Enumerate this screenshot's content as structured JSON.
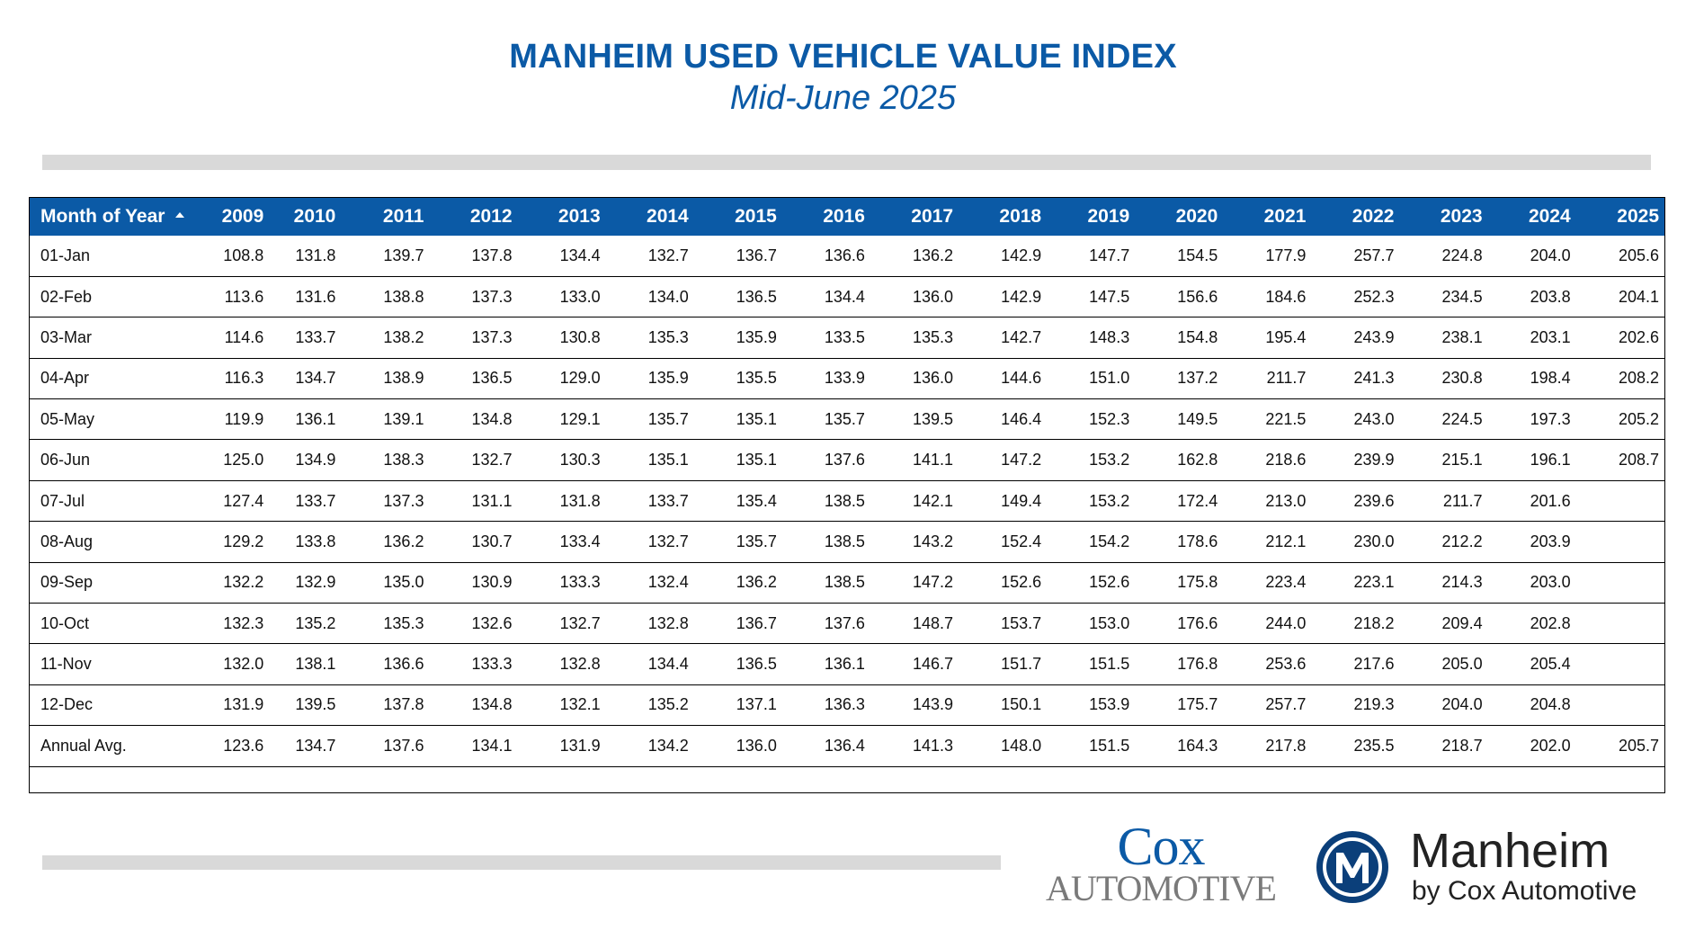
{
  "title": "MANHEIM USED VEHICLE VALUE INDEX",
  "subtitle": "Mid-June 2025",
  "table": {
    "first_header": "Month of Year",
    "sort_icon": "sort-ascending-icon",
    "years": [
      "2009",
      "2010",
      "2011",
      "2012",
      "2013",
      "2014",
      "2015",
      "2016",
      "2017",
      "2018",
      "2019",
      "2020",
      "2021",
      "2022",
      "2023",
      "2024",
      "2025"
    ],
    "rows": [
      {
        "label": "01-Jan",
        "values": [
          "108.8",
          "131.8",
          "139.7",
          "137.8",
          "134.4",
          "132.7",
          "136.7",
          "136.6",
          "136.2",
          "142.9",
          "147.7",
          "154.5",
          "177.9",
          "257.7",
          "224.8",
          "204.0",
          "205.6"
        ]
      },
      {
        "label": "02-Feb",
        "values": [
          "113.6",
          "131.6",
          "138.8",
          "137.3",
          "133.0",
          "134.0",
          "136.5",
          "134.4",
          "136.0",
          "142.9",
          "147.5",
          "156.6",
          "184.6",
          "252.3",
          "234.5",
          "203.8",
          "204.1"
        ]
      },
      {
        "label": "03-Mar",
        "values": [
          "114.6",
          "133.7",
          "138.2",
          "137.3",
          "130.8",
          "135.3",
          "135.9",
          "133.5",
          "135.3",
          "142.7",
          "148.3",
          "154.8",
          "195.4",
          "243.9",
          "238.1",
          "203.1",
          "202.6"
        ]
      },
      {
        "label": "04-Apr",
        "values": [
          "116.3",
          "134.7",
          "138.9",
          "136.5",
          "129.0",
          "135.9",
          "135.5",
          "133.9",
          "136.0",
          "144.6",
          "151.0",
          "137.2",
          "211.7",
          "241.3",
          "230.8",
          "198.4",
          "208.2"
        ]
      },
      {
        "label": "05-May",
        "values": [
          "119.9",
          "136.1",
          "139.1",
          "134.8",
          "129.1",
          "135.7",
          "135.1",
          "135.7",
          "139.5",
          "146.4",
          "152.3",
          "149.5",
          "221.5",
          "243.0",
          "224.5",
          "197.3",
          "205.2"
        ]
      },
      {
        "label": "06-Jun",
        "values": [
          "125.0",
          "134.9",
          "138.3",
          "132.7",
          "130.3",
          "135.1",
          "135.1",
          "137.6",
          "141.1",
          "147.2",
          "153.2",
          "162.8",
          "218.6",
          "239.9",
          "215.1",
          "196.1",
          "208.7"
        ]
      },
      {
        "label": "07-Jul",
        "values": [
          "127.4",
          "133.7",
          "137.3",
          "131.1",
          "131.8",
          "133.7",
          "135.4",
          "138.5",
          "142.1",
          "149.4",
          "153.2",
          "172.4",
          "213.0",
          "239.6",
          "211.7",
          "201.6",
          ""
        ]
      },
      {
        "label": "08-Aug",
        "values": [
          "129.2",
          "133.8",
          "136.2",
          "130.7",
          "133.4",
          "132.7",
          "135.7",
          "138.5",
          "143.2",
          "152.4",
          "154.2",
          "178.6",
          "212.1",
          "230.0",
          "212.2",
          "203.9",
          ""
        ]
      },
      {
        "label": "09-Sep",
        "values": [
          "132.2",
          "132.9",
          "135.0",
          "130.9",
          "133.3",
          "132.4",
          "136.2",
          "138.5",
          "147.2",
          "152.6",
          "152.6",
          "175.8",
          "223.4",
          "223.1",
          "214.3",
          "203.0",
          ""
        ]
      },
      {
        "label": "10-Oct",
        "values": [
          "132.3",
          "135.2",
          "135.3",
          "132.6",
          "132.7",
          "132.8",
          "136.7",
          "137.6",
          "148.7",
          "153.7",
          "153.0",
          "176.6",
          "244.0",
          "218.2",
          "209.4",
          "202.8",
          ""
        ]
      },
      {
        "label": "11-Nov",
        "values": [
          "132.0",
          "138.1",
          "136.6",
          "133.3",
          "132.8",
          "134.4",
          "136.5",
          "136.1",
          "146.7",
          "151.7",
          "151.5",
          "176.8",
          "253.6",
          "217.6",
          "205.0",
          "205.4",
          ""
        ]
      },
      {
        "label": "12-Dec",
        "values": [
          "131.9",
          "139.5",
          "137.8",
          "134.8",
          "132.1",
          "135.2",
          "137.1",
          "136.3",
          "143.9",
          "150.1",
          "153.9",
          "175.7",
          "257.7",
          "219.3",
          "204.0",
          "204.8",
          ""
        ]
      },
      {
        "label": "Annual Avg.",
        "values": [
          "123.6",
          "134.7",
          "137.6",
          "134.1",
          "131.9",
          "134.2",
          "136.0",
          "136.4",
          "141.3",
          "148.0",
          "151.5",
          "164.3",
          "217.8",
          "235.5",
          "218.7",
          "202.0",
          "205.7"
        ]
      }
    ]
  },
  "logos": {
    "cox_line1": "Cox",
    "cox_line2": "Automotive",
    "manheim_name": "Manheim",
    "manheim_sub": "by Cox Automotive",
    "brand_blue": "#0b5aa6",
    "emblem_icon": "manheim-m-emblem-icon"
  }
}
